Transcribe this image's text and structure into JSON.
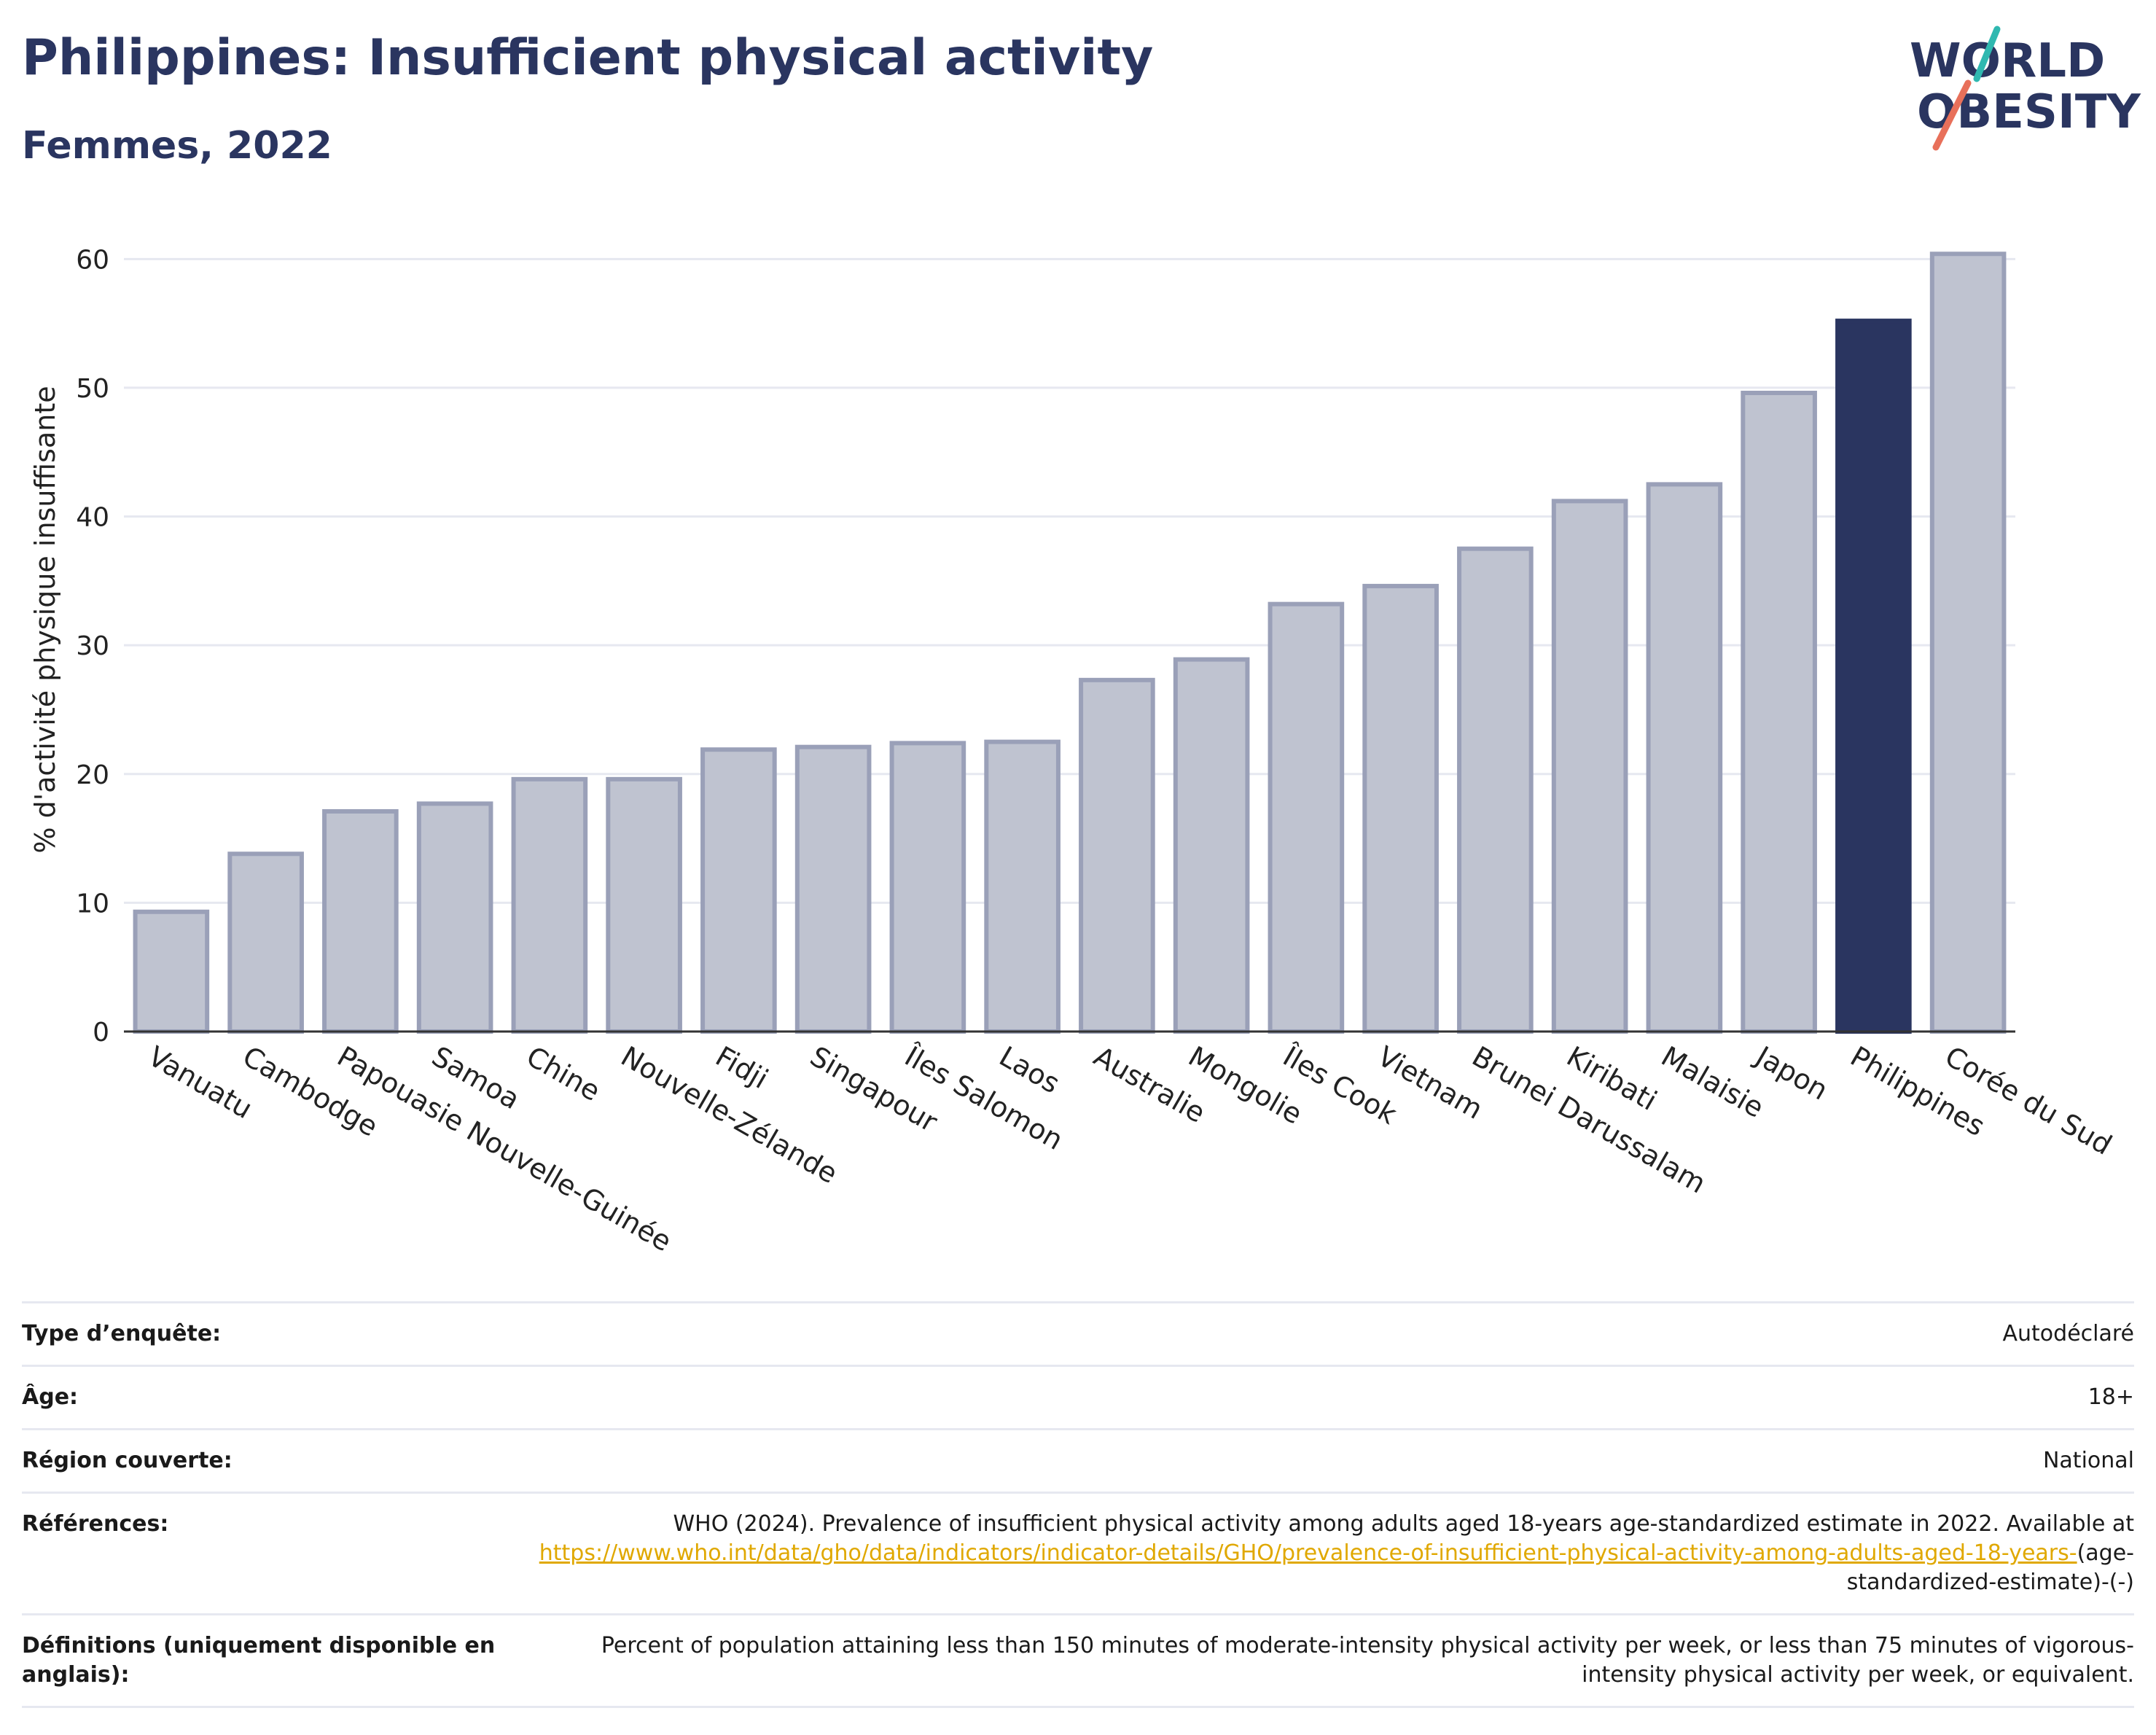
{
  "header": {
    "title": "Philippines: Insufficient physical activity",
    "subtitle": "Femmes, 2022"
  },
  "logo": {
    "line1": "WORLD",
    "line2": "OBESITY",
    "colors": {
      "text": "#2a3560",
      "accent_teal": "#2fb8b0",
      "accent_coral": "#e8705a"
    }
  },
  "colors": {
    "bar": "#bfc3d0",
    "bar_border": "#9aa0b8",
    "highlight": "#2a3560",
    "grid": "#e6e8f0",
    "axis": "#333333",
    "link": "#e0a800"
  },
  "chart_data": {
    "type": "bar",
    "ylabel": "% d'activité physique insuffisante",
    "xlabel": "",
    "ylim": [
      0,
      62
    ],
    "yticks": [
      0,
      10,
      20,
      30,
      40,
      50,
      60
    ],
    "grid": true,
    "highlight": "Philippines",
    "categories": [
      "Vanuatu",
      "Cambodge",
      "Papouasie Nouvelle-Guinée",
      "Samoa",
      "Chine",
      "Nouvelle-Zélande",
      "Fidji",
      "Singapour",
      "Îles Salomon",
      "Laos",
      "Australie",
      "Mongolie",
      "Îles Cook",
      "Vietnam",
      "Brunei Darussalam",
      "Kiribati",
      "Malaisie",
      "Japon",
      "Philippines",
      "Corée du Sud"
    ],
    "values": [
      9.3,
      13.8,
      17.1,
      17.7,
      19.6,
      19.6,
      21.9,
      22.1,
      22.4,
      22.5,
      27.3,
      28.9,
      33.2,
      34.6,
      37.5,
      41.2,
      42.5,
      49.6,
      55.2,
      60.4
    ]
  },
  "info": {
    "survey_label": "Type d’enquête:",
    "survey_value": "Autodéclaré",
    "age_label": "Âge:",
    "age_value": "18+",
    "region_label": "Région couverte:",
    "region_value": "National",
    "refs_label": "Références:",
    "refs_text": "WHO (2024). Prevalence of insufficient physical activity among adults aged 18-years age-standardized estimate in 2022. Available at",
    "refs_link": "https://www.who.int/data/gho/data/indicators/indicator-details/GHO/prevalence-of-insufficient-physical-activity-among-adults-aged-18-years-",
    "refs_suffix": "(age-standardized-estimate)-(-)",
    "defs_label": "Définitions (uniquement disponible en anglais):",
    "defs_text": "Percent of population attaining less than 150 minutes of moderate-intensity physical activity per week, or less than 75 minutes of vigorous-intensity physical activity per week, or equivalent."
  }
}
